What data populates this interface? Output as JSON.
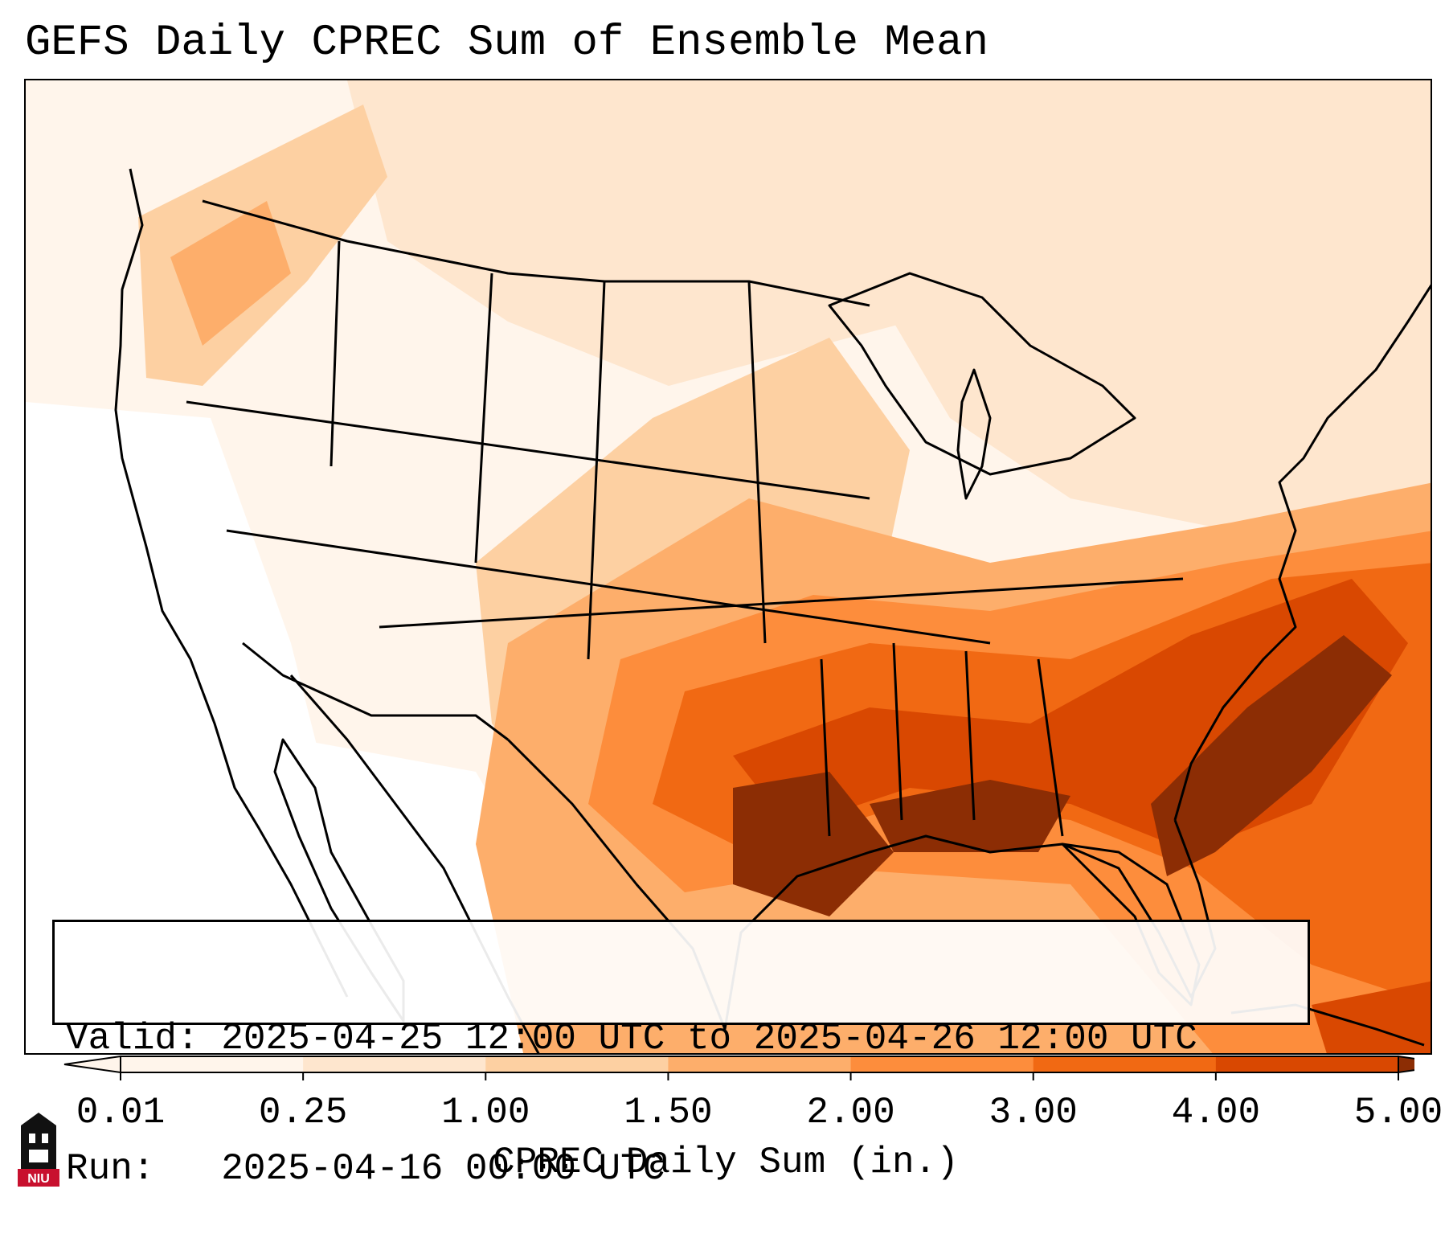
{
  "title": "GEFS Daily CPREC Sum of Ensemble Mean",
  "info": {
    "valid_label": "Valid:",
    "valid_value": "2025-04-25 12:00 UTC to 2025-04-26 12:00 UTC",
    "run_label": "Run:",
    "run_value": "2025-04-16 00:00 UTC"
  },
  "colorbar": {
    "label": "CPREC Daily Sum (in.)",
    "ticks": [
      "0.01",
      "0.25",
      "1.00",
      "1.50",
      "2.00",
      "3.00",
      "4.00",
      "5.00"
    ],
    "colors": [
      "#fff5eb",
      "#fee6ce",
      "#fdd0a2",
      "#fdae6b",
      "#fd8d3c",
      "#f16913",
      "#d94801",
      "#8c2d04"
    ],
    "extend": "both"
  },
  "logo": {
    "text": "NIU",
    "colors": {
      "tower": "#111111",
      "banner": "#c8102e"
    }
  },
  "map": {
    "land_outline_color": "#000000",
    "colors": {
      "none": "#ffffff",
      "c1": "#fff5eb",
      "c2": "#fee6ce",
      "c3": "#fdd0a2",
      "c4": "#fdae6b",
      "c5": "#fd8d3c",
      "c6": "#f16913",
      "c7": "#d94801",
      "c8": "#8c2d04"
    }
  }
}
